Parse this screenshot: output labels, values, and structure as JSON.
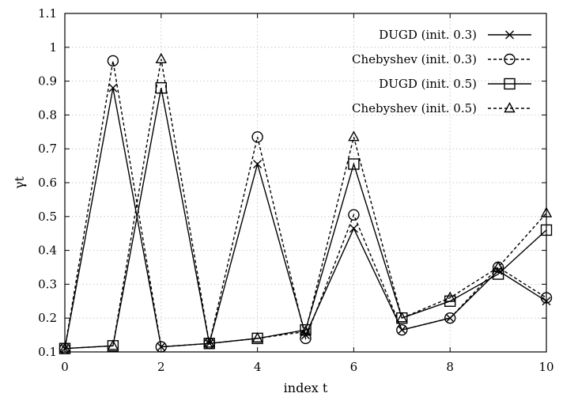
{
  "chart_data": {
    "type": "line",
    "title": "",
    "xlabel": "index t",
    "ylabel": "γt",
    "xlim": [
      0,
      10
    ],
    "ylim": [
      0.1,
      1.1
    ],
    "x": [
      0,
      1,
      2,
      3,
      4,
      5,
      6,
      7,
      8,
      9,
      10
    ],
    "xticks": [
      "0",
      "2",
      "4",
      "6",
      "8",
      "10"
    ],
    "yticks": [
      "0.1",
      "0.2",
      "0.3",
      "0.4",
      "0.5",
      "0.6",
      "0.7",
      "0.8",
      "0.9",
      "1",
      "1.1"
    ],
    "grid": true,
    "legend_position": "top-right",
    "series": [
      {
        "name": "DUGD (init. 0.3)",
        "marker": "x",
        "dash": "solid",
        "values": [
          0.11,
          0.88,
          0.115,
          0.125,
          0.655,
          0.15,
          0.465,
          0.165,
          0.2,
          0.34,
          0.25
        ]
      },
      {
        "name": "Chebyshev (init. 0.3)",
        "marker": "circle",
        "dash": "dashed",
        "values": [
          0.11,
          0.96,
          0.115,
          0.125,
          0.735,
          0.14,
          0.505,
          0.165,
          0.2,
          0.35,
          0.26
        ]
      },
      {
        "name": "DUGD (init. 0.5)",
        "marker": "square",
        "dash": "solid",
        "values": [
          0.11,
          0.118,
          0.88,
          0.125,
          0.14,
          0.165,
          0.655,
          0.2,
          0.25,
          0.33,
          0.46
        ]
      },
      {
        "name": "Chebyshev (init. 0.5)",
        "marker": "triangle",
        "dash": "dashed",
        "values": [
          0.11,
          0.118,
          0.965,
          0.125,
          0.14,
          0.16,
          0.735,
          0.2,
          0.26,
          0.35,
          0.51
        ]
      }
    ]
  }
}
